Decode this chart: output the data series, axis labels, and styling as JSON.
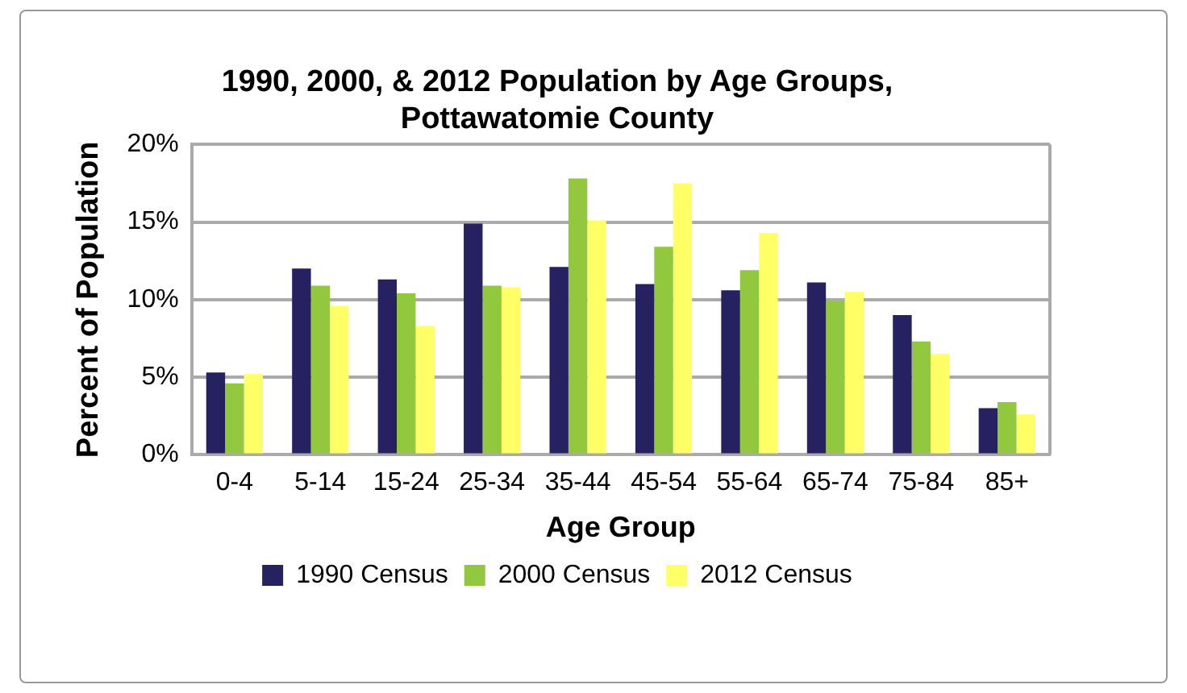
{
  "chart_data": {
    "type": "bar",
    "title": "1990, 2000, & 2012 Population by Age Groups,\nPottawatomie County",
    "xlabel": "Age Group",
    "ylabel": "Percent of Population",
    "categories": [
      "0-4",
      "5-14",
      "15-24",
      "25-34",
      "35-44",
      "45-54",
      "55-64",
      "65-74",
      "75-84",
      "85+"
    ],
    "series": [
      {
        "name": "1990 Census",
        "color": "#262262",
        "values": [
          5.3,
          12.0,
          11.3,
          14.9,
          12.1,
          11.0,
          10.6,
          11.1,
          9.0,
          3.0
        ]
      },
      {
        "name": "2000 Census",
        "color": "#92c83e",
        "values": [
          4.6,
          10.9,
          10.4,
          10.9,
          17.8,
          13.4,
          11.9,
          9.9,
          7.3,
          3.4
        ]
      },
      {
        "name": "2012 Census",
        "color": "#ffff66",
        "values": [
          5.2,
          9.6,
          8.3,
          10.8,
          15.1,
          17.5,
          14.3,
          10.5,
          6.5,
          2.6
        ]
      }
    ],
    "ylim": [
      0,
      20
    ],
    "yticks": [
      {
        "value": 0,
        "label": "0%"
      },
      {
        "value": 5,
        "label": "5%"
      },
      {
        "value": 10,
        "label": "10%"
      },
      {
        "value": 15,
        "label": "15%"
      },
      {
        "value": 20,
        "label": "20%"
      }
    ],
    "grid": "y",
    "legend": "bottom"
  }
}
